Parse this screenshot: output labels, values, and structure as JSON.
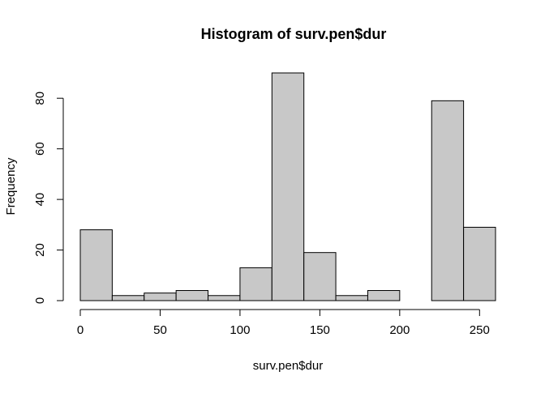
{
  "chart_data": {
    "type": "bar",
    "title": "Histogram of surv.pen$dur",
    "xlabel": "surv.pen$dur",
    "ylabel": "Frequency",
    "bin_edges": [
      0,
      20,
      40,
      60,
      80,
      100,
      120,
      140,
      160,
      180,
      200,
      220,
      240,
      260
    ],
    "values": [
      28,
      2,
      3,
      4,
      2,
      13,
      90,
      19,
      2,
      4,
      0,
      79,
      29
    ],
    "x_ticks": [
      0,
      50,
      100,
      150,
      200,
      250
    ],
    "y_ticks": [
      0,
      20,
      40,
      60,
      80
    ],
    "xlim": [
      0,
      260
    ],
    "ylim": [
      0,
      90
    ],
    "grid": false,
    "bar_fill": "#c8c8c8",
    "bar_stroke": "#000000"
  }
}
